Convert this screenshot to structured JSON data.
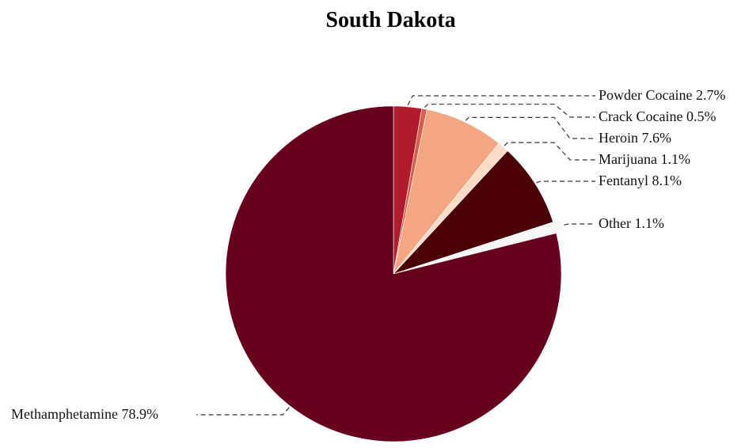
{
  "chart_data": {
    "type": "pie",
    "title": "South Dakota",
    "start_angle_deg": 90,
    "direction": "clockwise",
    "slices": [
      {
        "label": "Powder Cocaine",
        "value": 2.7,
        "display": "Powder Cocaine 2.7%",
        "color": "#b01c2e",
        "explode": false
      },
      {
        "label": "Crack Cocaine",
        "value": 0.5,
        "display": "Crack Cocaine 0.5%",
        "color": "#d6604d",
        "explode": false
      },
      {
        "label": "Heroin",
        "value": 7.6,
        "display": "Heroin 7.6%",
        "color": "#f4a582",
        "explode": false
      },
      {
        "label": "Marijuana",
        "value": 1.1,
        "display": "Marijuana 1.1%",
        "color": "#fddbc7",
        "explode": false
      },
      {
        "label": "Fentanyl",
        "value": 8.1,
        "display": "Fentanyl 8.1%",
        "color": "#4a0005",
        "explode": false
      },
      {
        "label": "Other",
        "value": 1.1,
        "display": "Other 1.1%",
        "color": "#f7f7f7",
        "explode": true
      },
      {
        "label": "Methamphetamine",
        "value": 78.9,
        "display": "Methamphetamine 78.9%",
        "color": "#67001f",
        "explode": false
      }
    ]
  }
}
